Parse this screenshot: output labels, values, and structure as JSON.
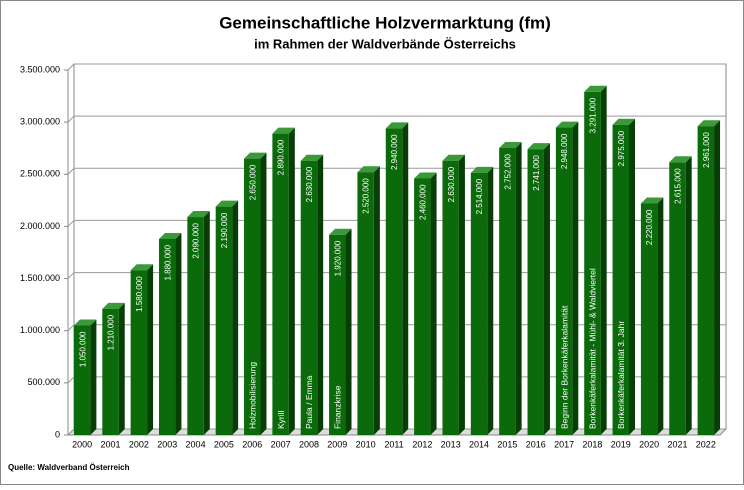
{
  "chart_data": {
    "type": "bar",
    "title": "Gemeinschaftliche Holzvermarktung (fm)",
    "subtitle": "im Rahmen der Waldverbände Österreichs",
    "source": "Quelle: Waldverband Österreich",
    "categories": [
      "2000",
      "2001",
      "2002",
      "2003",
      "2004",
      "2005",
      "2006",
      "2007",
      "2008",
      "2009",
      "2010",
      "2011",
      "2012",
      "2013",
      "2014",
      "2015",
      "2016",
      "2017",
      "2018",
      "2019",
      "2020",
      "2021",
      "2022"
    ],
    "values": [
      1050000,
      1210000,
      1580000,
      1880000,
      2090000,
      2190000,
      2650000,
      2890000,
      2630000,
      1920000,
      2520000,
      2940000,
      2460000,
      2630000,
      2514000,
      2752000,
      2741000,
      2948000,
      3291000,
      2975000,
      2220000,
      2615000,
      2961000
    ],
    "value_labels": [
      "1.050.000",
      "1.210.000",
      "1.580.000",
      "1.880.000",
      "2.090.000",
      "2.190.000",
      "2.650.000",
      "2.890.000",
      "2.630.000",
      "1.920.000",
      "2.520.000",
      "2.940.000",
      "2.460.000",
      "2.630.000",
      "2.514.000",
      "2.752.000",
      "2.741.000",
      "2.948.000",
      "3.291.000",
      "2.975.000",
      "2.220.000",
      "2.615.000",
      "2.961.000"
    ],
    "bar_notes": [
      null,
      null,
      null,
      null,
      null,
      null,
      "Holzmobilisierung",
      "Kyrill",
      "Paula / Emma",
      "Finanzkrise",
      null,
      null,
      null,
      null,
      null,
      null,
      null,
      "Beginn der Borkenkäferkalamität",
      "Borkenkäferkalamität - Mühl- & Waldviertel",
      "Borkenkäferkalamität 3. Jahr",
      null,
      null,
      null
    ],
    "color": "#0b6b0b",
    "ylim": [
      0,
      3500000
    ],
    "yticks": [
      0,
      {
        "value": 500000,
        "label": "500.000"
      },
      {
        "value": 1000000,
        "label": "1.000.000"
      },
      {
        "value": 1500000,
        "label": "1.500.000"
      },
      {
        "value": 2000000,
        "label": "2.000.000"
      },
      {
        "value": 2500000,
        "label": "2.500.000"
      },
      {
        "value": 3000000,
        "label": "3.000.000"
      },
      {
        "value": 3500000,
        "label": "3.500.000"
      }
    ],
    "grid": true
  }
}
